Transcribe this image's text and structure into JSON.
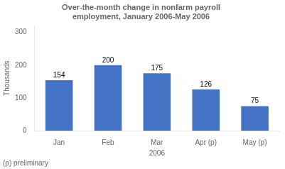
{
  "chart_data": {
    "type": "bar",
    "title": "Over-the-month change in nonfarm payroll\nemployment, January 2006-May 2006",
    "ylabel": "Thousands",
    "xlabel": "2006",
    "footnote": "(p) preliminary",
    "categories": [
      "Jan",
      "Feb",
      "Mar",
      "Apr (p)",
      "May (p)"
    ],
    "values": [
      154,
      200,
      175,
      126,
      75
    ],
    "color": "#4472C4",
    "ylim": [
      0,
      320
    ],
    "yticks": [
      0,
      100,
      200,
      300
    ],
    "grid": false,
    "data_labels": true
  }
}
